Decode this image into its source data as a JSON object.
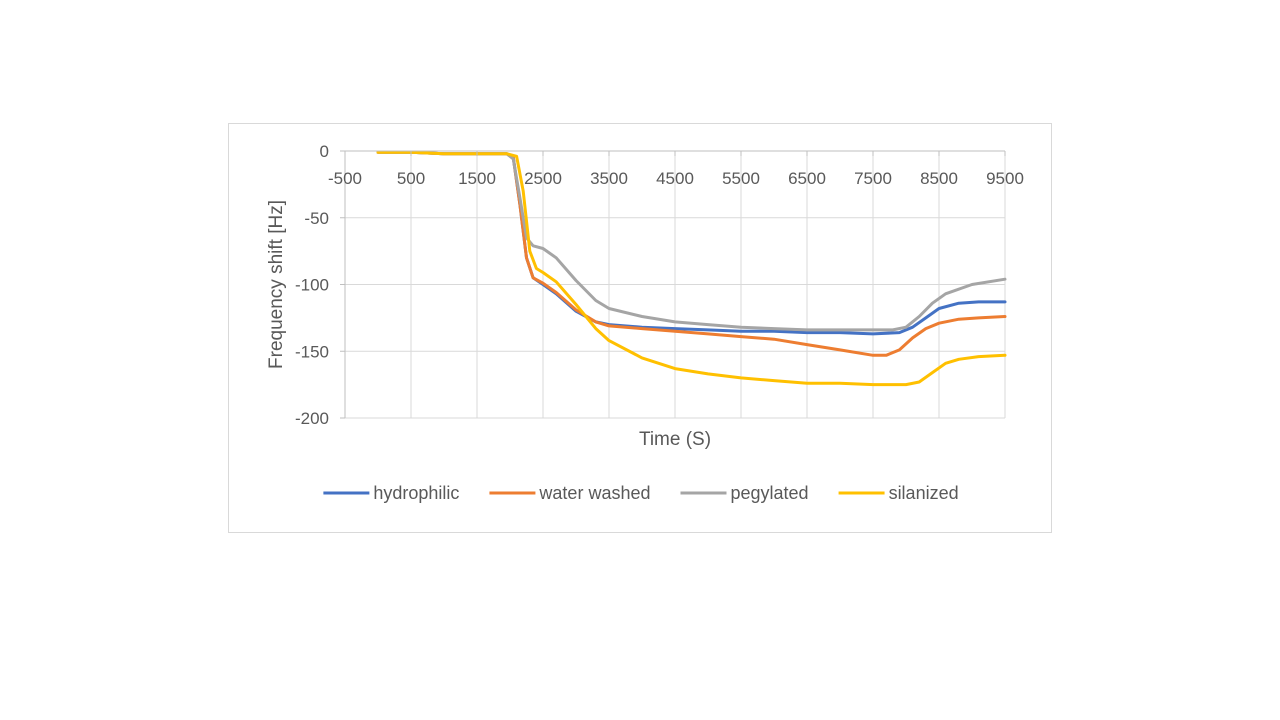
{
  "chart_data": {
    "type": "line",
    "title": "",
    "xlabel": "Time (S)",
    "ylabel": "Frequency shift [Hz]",
    "xlim": [
      -500,
      9500
    ],
    "ylim": [
      -200,
      0
    ],
    "x_ticks": [
      -500,
      500,
      1500,
      2500,
      3500,
      4500,
      5500,
      6500,
      7500,
      8500,
      9500
    ],
    "y_ticks": [
      0,
      -50,
      -100,
      -150,
      -200
    ],
    "grid": true,
    "legend_position": "bottom",
    "series": [
      {
        "name": "hydrophilic",
        "color": "#4472C4",
        "points": [
          [
            0,
            -1
          ],
          [
            500,
            -1
          ],
          [
            1000,
            -2
          ],
          [
            1500,
            -2
          ],
          [
            1950,
            -2
          ],
          [
            2050,
            -5
          ],
          [
            2150,
            -40
          ],
          [
            2250,
            -80
          ],
          [
            2350,
            -95
          ],
          [
            2500,
            -100
          ],
          [
            2700,
            -107
          ],
          [
            3000,
            -120
          ],
          [
            3300,
            -128
          ],
          [
            3500,
            -130
          ],
          [
            4000,
            -132
          ],
          [
            4500,
            -133
          ],
          [
            5000,
            -134
          ],
          [
            5500,
            -135
          ],
          [
            6000,
            -135
          ],
          [
            6500,
            -136
          ],
          [
            7000,
            -136
          ],
          [
            7500,
            -137
          ],
          [
            7900,
            -136
          ],
          [
            8100,
            -132
          ],
          [
            8300,
            -125
          ],
          [
            8500,
            -118
          ],
          [
            8800,
            -114
          ],
          [
            9100,
            -113
          ],
          [
            9500,
            -113
          ]
        ]
      },
      {
        "name": "water washed",
        "color": "#ED7D31",
        "points": [
          [
            0,
            -1
          ],
          [
            500,
            -1
          ],
          [
            1000,
            -2
          ],
          [
            1500,
            -2
          ],
          [
            1950,
            -2
          ],
          [
            2050,
            -5
          ],
          [
            2150,
            -40
          ],
          [
            2250,
            -80
          ],
          [
            2350,
            -95
          ],
          [
            2500,
            -99
          ],
          [
            2700,
            -106
          ],
          [
            3000,
            -119
          ],
          [
            3300,
            -128
          ],
          [
            3500,
            -131
          ],
          [
            4000,
            -133
          ],
          [
            4500,
            -135
          ],
          [
            5000,
            -137
          ],
          [
            5500,
            -139
          ],
          [
            6000,
            -141
          ],
          [
            6500,
            -145
          ],
          [
            7000,
            -149
          ],
          [
            7500,
            -153
          ],
          [
            7700,
            -153
          ],
          [
            7900,
            -149
          ],
          [
            8100,
            -140
          ],
          [
            8300,
            -133
          ],
          [
            8500,
            -129
          ],
          [
            8800,
            -126
          ],
          [
            9100,
            -125
          ],
          [
            9500,
            -124
          ]
        ]
      },
      {
        "name": "pegylated",
        "color": "#A5A5A5",
        "points": [
          [
            0,
            -1
          ],
          [
            500,
            -1
          ],
          [
            1000,
            -2
          ],
          [
            1500,
            -2
          ],
          [
            1950,
            -2
          ],
          [
            2050,
            -6
          ],
          [
            2150,
            -35
          ],
          [
            2250,
            -65
          ],
          [
            2350,
            -71
          ],
          [
            2500,
            -73
          ],
          [
            2700,
            -80
          ],
          [
            3000,
            -97
          ],
          [
            3300,
            -112
          ],
          [
            3500,
            -118
          ],
          [
            4000,
            -124
          ],
          [
            4500,
            -128
          ],
          [
            5000,
            -130
          ],
          [
            5500,
            -132
          ],
          [
            6000,
            -133
          ],
          [
            6500,
            -134
          ],
          [
            7000,
            -134
          ],
          [
            7500,
            -134
          ],
          [
            7800,
            -134
          ],
          [
            8000,
            -132
          ],
          [
            8200,
            -124
          ],
          [
            8400,
            -114
          ],
          [
            8600,
            -107
          ],
          [
            9000,
            -100
          ],
          [
            9500,
            -96
          ]
        ]
      },
      {
        "name": "silanized",
        "color": "#FFC000",
        "points": [
          [
            0,
            -1
          ],
          [
            500,
            -1
          ],
          [
            1000,
            -2
          ],
          [
            1500,
            -2
          ],
          [
            1950,
            -2
          ],
          [
            2100,
            -4
          ],
          [
            2200,
            -30
          ],
          [
            2300,
            -75
          ],
          [
            2400,
            -88
          ],
          [
            2500,
            -91
          ],
          [
            2700,
            -98
          ],
          [
            3000,
            -115
          ],
          [
            3300,
            -133
          ],
          [
            3500,
            -142
          ],
          [
            4000,
            -155
          ],
          [
            4500,
            -163
          ],
          [
            5000,
            -167
          ],
          [
            5500,
            -170
          ],
          [
            6000,
            -172
          ],
          [
            6500,
            -174
          ],
          [
            7000,
            -174
          ],
          [
            7500,
            -175
          ],
          [
            8000,
            -175
          ],
          [
            8200,
            -173
          ],
          [
            8400,
            -166
          ],
          [
            8600,
            -159
          ],
          [
            8800,
            -156
          ],
          [
            9100,
            -154
          ],
          [
            9500,
            -153
          ]
        ]
      }
    ]
  }
}
